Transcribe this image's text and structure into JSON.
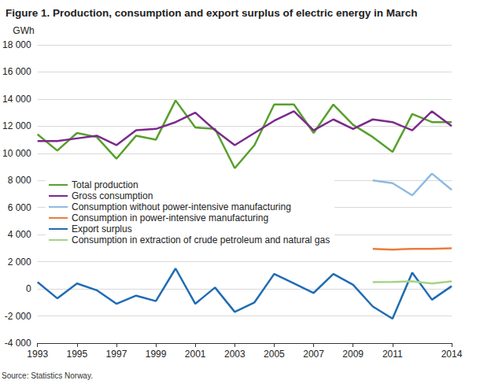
{
  "chart_data": {
    "type": "line",
    "title": "Figure 1. Production, consumption and export surplus of electric energy in March",
    "y_label": "GWh",
    "source": "Source: Statistics Norway.",
    "x": [
      1993,
      1994,
      1995,
      1996,
      1997,
      1998,
      1999,
      2000,
      2001,
      2002,
      2003,
      2004,
      2005,
      2006,
      2007,
      2008,
      2009,
      2010,
      2011,
      2012,
      2013,
      2014
    ],
    "xlim": [
      1993,
      2014
    ],
    "xticks": [
      1993,
      1995,
      1997,
      1999,
      2001,
      2003,
      2005,
      2007,
      2009,
      2011,
      2014
    ],
    "ylim": [
      -4000,
      18000
    ],
    "yticks": [
      {
        "value": -4000,
        "label": "-4 000"
      },
      {
        "value": -2000,
        "label": "-2 000"
      },
      0,
      {
        "value": 2000,
        "label": "2 000"
      },
      {
        "value": 4000,
        "label": "4 000"
      },
      {
        "value": 6000,
        "label": "6 000"
      },
      {
        "value": 8000,
        "label": "8 000"
      },
      {
        "value": 10000,
        "label": "10 000"
      },
      {
        "value": 12000,
        "label": "12 000"
      },
      {
        "value": 14000,
        "label": "14 000"
      },
      {
        "value": 16000,
        "label": "16 000"
      },
      {
        "value": 18000,
        "label": "18 000"
      }
    ],
    "grid": true,
    "legend": "left",
    "series": [
      {
        "name": "Total production",
        "color": "#58a02c",
        "values": [
          11400,
          10200,
          11500,
          11200,
          9600,
          11300,
          11000,
          13900,
          11900,
          11800,
          8900,
          10600,
          13600,
          13600,
          11500,
          13600,
          12100,
          11200,
          10100,
          12900,
          12300,
          12300
        ]
      },
      {
        "name": "Gross consumption",
        "color": "#7a2a8c",
        "values": [
          10900,
          10900,
          11100,
          11300,
          10600,
          11700,
          11800,
          12300,
          13000,
          11700,
          10600,
          11500,
          12400,
          13100,
          11700,
          12500,
          11800,
          12500,
          12300,
          11700,
          13100,
          12000
        ]
      },
      {
        "name": "Consumption without power-intensive manufacturing",
        "color": "#8dbbe3",
        "values": [
          null,
          null,
          null,
          null,
          null,
          null,
          null,
          null,
          null,
          null,
          null,
          null,
          null,
          null,
          null,
          null,
          null,
          8000,
          7800,
          6900,
          8500,
          7300
        ]
      },
      {
        "name": "Consumption in power-intensive manufacturing",
        "color": "#ea7d3c",
        "values": [
          null,
          null,
          null,
          null,
          null,
          null,
          null,
          null,
          null,
          null,
          null,
          null,
          null,
          null,
          null,
          null,
          null,
          2950,
          2900,
          2950,
          2950,
          3000
        ]
      },
      {
        "name": "Export surplus",
        "color": "#1f6cb4",
        "values": [
          500,
          -700,
          400,
          -100,
          -1100,
          -500,
          -900,
          1500,
          -1100,
          100,
          -1700,
          -1000,
          1100,
          400,
          -300,
          1100,
          300,
          -1300,
          -2200,
          1200,
          -800,
          200
        ]
      },
      {
        "name": "Consumption in extraction of crude petroleum and natural gas",
        "color": "#a3d485",
        "values": [
          null,
          null,
          null,
          null,
          null,
          null,
          null,
          null,
          null,
          null,
          null,
          null,
          null,
          null,
          null,
          null,
          null,
          500,
          520,
          550,
          400,
          550
        ]
      }
    ]
  }
}
